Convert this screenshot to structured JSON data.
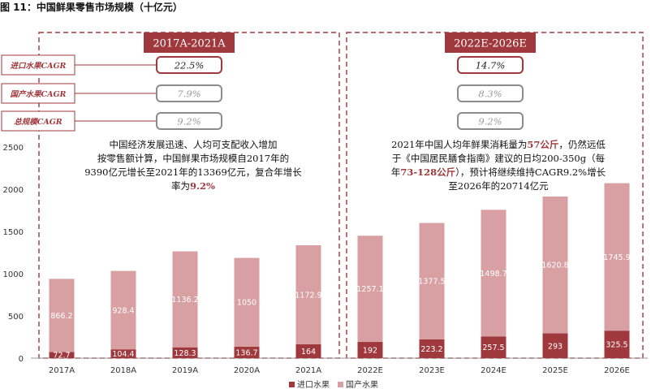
{
  "figure_title": "图 11：中国鲜果零售市场规模（十亿元）",
  "colors": {
    "import": "#a0393d",
    "domestic": "#d9a0a3",
    "dashed_border": "#a0393d",
    "header_fill": "#a0393d",
    "gray_box": "#8c8c8c"
  },
  "period_left": {
    "header": "2017A-2021A",
    "cagr_rows": [
      {
        "label": "进口水果CAGR",
        "value": "22.5%",
        "style": "accent"
      },
      {
        "label": "国产水果CAGR",
        "value": "7.9%",
        "style": "gray"
      },
      {
        "label": "总规模CAGR",
        "value": "9.2%",
        "style": "gray"
      }
    ],
    "note_lines": [
      {
        "text": "中国经济发展迅速、人均可支配收入增加",
        "highlight": ""
      },
      {
        "text": "按零售额计算，中国鲜果市场规模自2017年的",
        "highlight": ""
      },
      {
        "text": "9390亿元增长至2021年的13369亿元，复合年增长",
        "highlight": ""
      },
      {
        "text": "率为",
        "highlight": "9.2%"
      }
    ]
  },
  "period_right": {
    "header": "2022E-2026E",
    "cagr_rows": [
      {
        "value": "14.7%",
        "style": "accent"
      },
      {
        "value": "8.3%",
        "style": "gray"
      },
      {
        "value": "9.2%",
        "style": "gray"
      }
    ],
    "note_lines": [
      {
        "pre": "2021年中国人均年鲜果消耗量为",
        "highlight": "57公斤",
        "post": "，仍然远低"
      },
      {
        "pre": "于《中国居民膳食指南》建议的日均200-350g（每",
        "highlight": "",
        "post": ""
      },
      {
        "pre": "年",
        "highlight": "73-128公斤",
        "post": "），预计将继续维持CAGR9.2%增长"
      },
      {
        "pre": "至2026年的20714亿元",
        "highlight": "",
        "post": ""
      }
    ]
  },
  "chart_data": {
    "type": "bar",
    "stacked": true,
    "categories": [
      "2017A",
      "2018A",
      "2019A",
      "2020A",
      "2021A",
      "2022E",
      "2023E",
      "2024E",
      "2025E",
      "2026E"
    ],
    "series": [
      {
        "name": "进口水果",
        "values": [
          72.7,
          104.4,
          128.3,
          136.7,
          164,
          192,
          223.2,
          257.5,
          293,
          325.5
        ]
      },
      {
        "name": "国产水果",
        "values": [
          866.2,
          928.4,
          1136.2,
          1050,
          1172.9,
          1257.1,
          1377.5,
          1498.7,
          1620.8,
          1745.9
        ]
      }
    ],
    "ylim": [
      0,
      2500
    ],
    "yticks": [
      0,
      500,
      1000,
      1500,
      2000,
      2500
    ],
    "xlabel": "",
    "ylabel": "",
    "legend_position": "bottom"
  }
}
